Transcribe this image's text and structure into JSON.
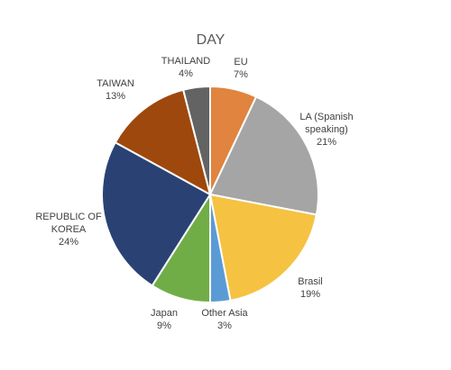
{
  "chart_data": {
    "type": "pie",
    "title": "DAY",
    "categories": [
      "EU",
      "LA (Spanish speaking)",
      "Brasil",
      "Other Asia",
      "Japan",
      "REPUBLIC OF KOREA",
      "TAIWAN",
      "THAILAND"
    ],
    "values": [
      7,
      21,
      19,
      3,
      9,
      24,
      13,
      4
    ],
    "value_labels": [
      "7%",
      "21%",
      "19%",
      "3%",
      "9%",
      "24%",
      "13%",
      "4%"
    ],
    "colors": [
      "#e0843f",
      "#a5a5a5",
      "#f5c242",
      "#5b9bd5",
      "#70ad47",
      "#2a4273",
      "#9e480e",
      "#636363"
    ]
  }
}
